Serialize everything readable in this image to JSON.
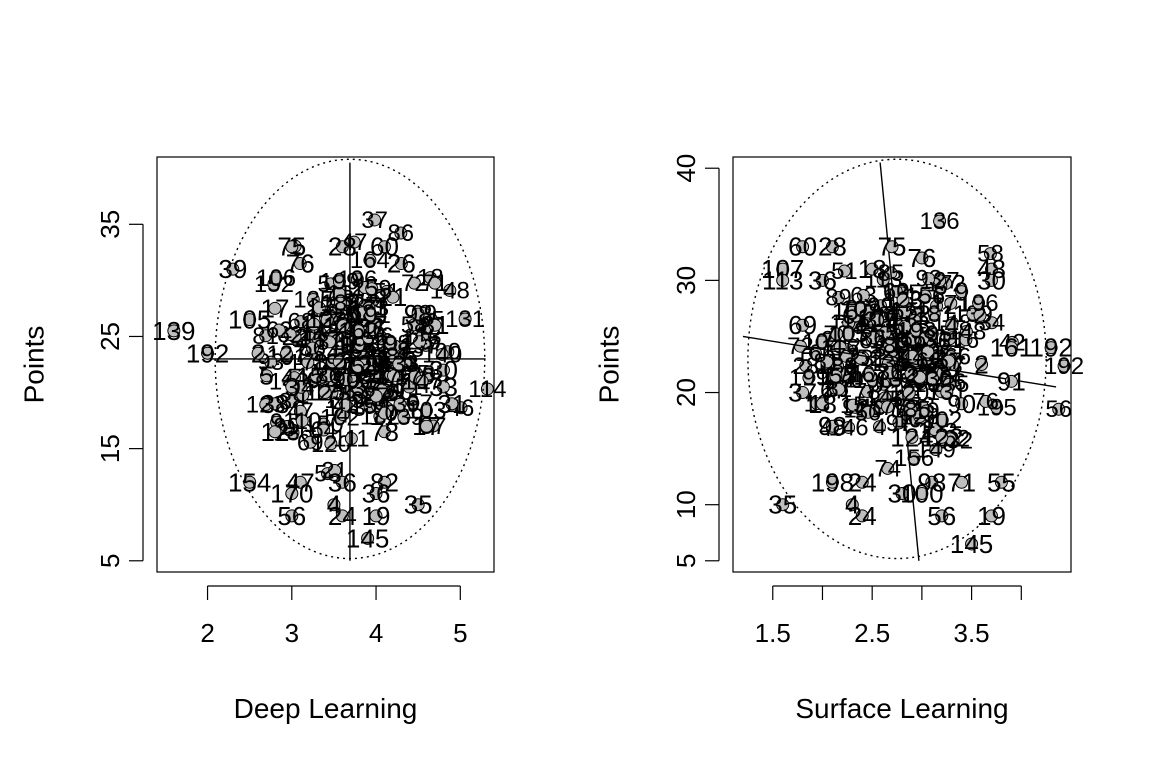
{
  "chart_data": [
    {
      "type": "scatter",
      "title": "",
      "xlabel": "Deep Learning",
      "ylabel": "Points",
      "xlim": [
        1.4,
        5.4
      ],
      "ylim": [
        4,
        41
      ],
      "xticks": [
        2,
        3,
        4,
        5
      ],
      "yticks": [
        5,
        15,
        25,
        35
      ],
      "x_tick_labels": [
        "2",
        "3",
        "4",
        "5"
      ],
      "y_tick_labels": [
        "5",
        "15",
        "25",
        "35"
      ],
      "point_fill": "#bebebe",
      "cross": {
        "center": [
          3.69,
          23.0
        ],
        "vertical": [
          [
            3.69,
            5.0
          ],
          [
            3.69,
            40.5
          ]
        ],
        "horizontal": [
          [
            2.05,
            23.0
          ],
          [
            5.3,
            23.0
          ]
        ]
      },
      "ellipse": {
        "center": [
          3.69,
          23.0
        ],
        "rx": 1.6,
        "ry": 17.8,
        "style": "dotted"
      },
      "labeled_points": [
        {
          "id": "75",
          "x": 3.0,
          "y": 33.0
        },
        {
          "id": "28",
          "x": 3.6,
          "y": 33.0
        },
        {
          "id": "60",
          "x": 4.1,
          "y": 33.0
        },
        {
          "id": "39",
          "x": 2.3,
          "y": 31.0
        },
        {
          "id": "76",
          "x": 3.1,
          "y": 31.5
        },
        {
          "id": "26",
          "x": 4.3,
          "y": 31.5
        },
        {
          "id": "17",
          "x": 2.8,
          "y": 27.5
        },
        {
          "id": "21",
          "x": 4.2,
          "y": 28.5
        },
        {
          "id": "98",
          "x": 4.5,
          "y": 27.0
        },
        {
          "id": "105",
          "x": 2.5,
          "y": 26.5
        },
        {
          "id": "81",
          "x": 4.7,
          "y": 26.0
        },
        {
          "id": "139",
          "x": 1.6,
          "y": 25.5
        },
        {
          "id": "192",
          "x": 2.0,
          "y": 23.5
        },
        {
          "id": "2",
          "x": 2.6,
          "y": 23.5
        },
        {
          "id": "30",
          "x": 4.8,
          "y": 22.0
        },
        {
          "id": "5",
          "x": 2.7,
          "y": 21.5
        },
        {
          "id": "3",
          "x": 3.0,
          "y": 20.5
        },
        {
          "id": "33",
          "x": 4.8,
          "y": 20.5
        },
        {
          "id": "38",
          "x": 2.8,
          "y": 19.0
        },
        {
          "id": "31",
          "x": 4.9,
          "y": 19.0
        },
        {
          "id": "17",
          "x": 4.6,
          "y": 17.0
        },
        {
          "id": "12",
          "x": 2.8,
          "y": 16.5
        },
        {
          "id": "78",
          "x": 4.1,
          "y": 16.5
        },
        {
          "id": "154",
          "x": 2.5,
          "y": 12.0
        },
        {
          "id": "47",
          "x": 3.1,
          "y": 12.0
        },
        {
          "id": "36",
          "x": 3.6,
          "y": 12.0
        },
        {
          "id": "82",
          "x": 4.1,
          "y": 12.0
        },
        {
          "id": "170",
          "x": 3.0,
          "y": 11.0
        },
        {
          "id": "36",
          "x": 4.0,
          "y": 11.0
        },
        {
          "id": "35",
          "x": 4.5,
          "y": 10.0
        },
        {
          "id": "4",
          "x": 3.5,
          "y": 10.0
        },
        {
          "id": "56",
          "x": 3.0,
          "y": 9.0
        },
        {
          "id": "24",
          "x": 3.6,
          "y": 9.0
        },
        {
          "id": "19",
          "x": 4.0,
          "y": 9.0
        },
        {
          "id": "145",
          "x": 3.9,
          "y": 7.0
        }
      ]
    },
    {
      "type": "scatter",
      "title": "",
      "xlabel": "Surface Learning",
      "ylabel": "Points",
      "xlim": [
        1.1,
        4.5
      ],
      "ylim": [
        4,
        41
      ],
      "xticks": [
        1.5,
        2.0,
        2.5,
        3.0,
        3.5,
        4.0
      ],
      "yticks": [
        5,
        10,
        20,
        30,
        40
      ],
      "x_tick_labels": [
        "1.5",
        "",
        "2.5",
        "",
        "3.5",
        ""
      ],
      "y_tick_labels": [
        "5",
        "10",
        "20",
        "30",
        "40"
      ],
      "point_fill": "#bebebe",
      "cross": {
        "center": [
          2.75,
          23.0
        ],
        "vertical": [
          [
            2.58,
            40.5
          ],
          [
            2.97,
            5.0
          ]
        ],
        "horizontal": [
          [
            1.2,
            25.0
          ],
          [
            4.35,
            20.5
          ]
        ]
      },
      "ellipse": {
        "center": [
          2.75,
          23.0
        ],
        "rx": 1.5,
        "ry": 17.8,
        "style": "dotted"
      },
      "labeled_points": [
        {
          "id": "60",
          "x": 1.8,
          "y": 33.0
        },
        {
          "id": "28",
          "x": 2.1,
          "y": 33.0
        },
        {
          "id": "75",
          "x": 2.7,
          "y": 33.0
        },
        {
          "id": "76",
          "x": 3.0,
          "y": 32.0
        },
        {
          "id": "107",
          "x": 1.6,
          "y": 31.0
        },
        {
          "id": "18",
          "x": 2.5,
          "y": 31.0
        },
        {
          "id": "48",
          "x": 3.7,
          "y": 31.0
        },
        {
          "id": "113",
          "x": 1.6,
          "y": 30.0
        },
        {
          "id": "36",
          "x": 2.0,
          "y": 30.0
        },
        {
          "id": "30",
          "x": 3.7,
          "y": 30.0
        },
        {
          "id": "9",
          "x": 3.4,
          "y": 29.0
        },
        {
          "id": "69",
          "x": 1.8,
          "y": 26.0
        },
        {
          "id": "4",
          "x": 3.3,
          "y": 26.0
        },
        {
          "id": "192",
          "x": 4.3,
          "y": 24.0
        },
        {
          "id": "161",
          "x": 3.9,
          "y": 24.0
        },
        {
          "id": "2",
          "x": 3.6,
          "y": 22.5
        },
        {
          "id": "91",
          "x": 3.9,
          "y": 21.0
        },
        {
          "id": "37",
          "x": 1.8,
          "y": 20.0
        },
        {
          "id": "18",
          "x": 2.0,
          "y": 19.0
        },
        {
          "id": "90",
          "x": 3.4,
          "y": 19.0
        },
        {
          "id": "98",
          "x": 2.1,
          "y": 17.0
        },
        {
          "id": "124",
          "x": 2.9,
          "y": 16.0
        },
        {
          "id": "122",
          "x": 3.2,
          "y": 16.0
        },
        {
          "id": "198",
          "x": 2.1,
          "y": 12.0
        },
        {
          "id": "24",
          "x": 2.4,
          "y": 12.0
        },
        {
          "id": "98",
          "x": 3.1,
          "y": 12.0
        },
        {
          "id": "71",
          "x": 3.4,
          "y": 12.0
        },
        {
          "id": "55",
          "x": 3.8,
          "y": 12.0
        },
        {
          "id": "30",
          "x": 2.8,
          "y": 11.0
        },
        {
          "id": "100",
          "x": 3.0,
          "y": 11.0
        },
        {
          "id": "35",
          "x": 1.6,
          "y": 10.0
        },
        {
          "id": "4",
          "x": 2.3,
          "y": 10.0
        },
        {
          "id": "24",
          "x": 2.4,
          "y": 9.0
        },
        {
          "id": "56",
          "x": 3.2,
          "y": 9.0
        },
        {
          "id": "19",
          "x": 3.7,
          "y": 9.0
        },
        {
          "id": "145",
          "x": 3.5,
          "y": 6.5
        }
      ]
    }
  ]
}
